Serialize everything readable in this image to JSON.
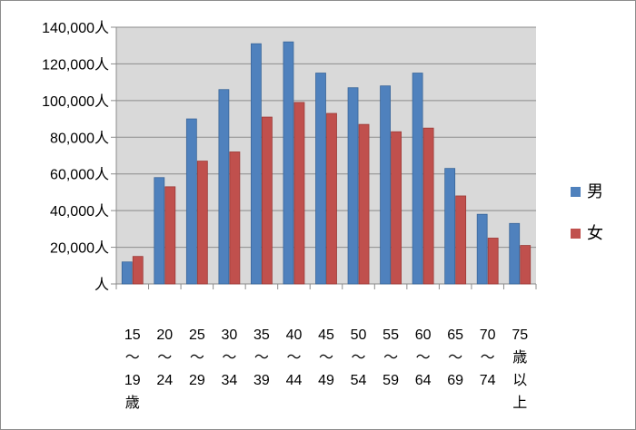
{
  "chart_data": {
    "type": "bar",
    "title": "",
    "xlabel": "",
    "ylabel": "",
    "ylim": [
      0,
      140000
    ],
    "y_ticks": [
      "人",
      "20,000人",
      "40,000人",
      "60,000人",
      "80,000人",
      "100,000人",
      "120,000人",
      "140,000人"
    ],
    "y_tick_values": [
      0,
      20000,
      40000,
      60000,
      80000,
      100000,
      120000,
      140000
    ],
    "grid": true,
    "legend_position": "right",
    "categories": [
      [
        "15",
        "～",
        "19",
        "歳"
      ],
      [
        "20",
        "～",
        "24"
      ],
      [
        "25",
        "～",
        "29"
      ],
      [
        "30",
        "～",
        "34"
      ],
      [
        "35",
        "～",
        "39"
      ],
      [
        "40",
        "～",
        "44"
      ],
      [
        "45",
        "～",
        "49"
      ],
      [
        "50",
        "～",
        "54"
      ],
      [
        "55",
        "～",
        "59"
      ],
      [
        "60",
        "～",
        "64"
      ],
      [
        "65",
        "～",
        "69"
      ],
      [
        "70",
        "～",
        "74"
      ],
      [
        "75",
        "歳",
        "以",
        "上"
      ]
    ],
    "series": [
      {
        "name": "男",
        "color": "#4F81BD",
        "values": [
          12000,
          58000,
          90000,
          106000,
          131000,
          132000,
          115000,
          107000,
          108000,
          115000,
          63000,
          38000,
          33000
        ]
      },
      {
        "name": "女",
        "color": "#C0504D",
        "values": [
          15000,
          53000,
          67000,
          72000,
          91000,
          99000,
          93000,
          87000,
          83000,
          85000,
          48000,
          25000,
          21000
        ]
      }
    ]
  }
}
